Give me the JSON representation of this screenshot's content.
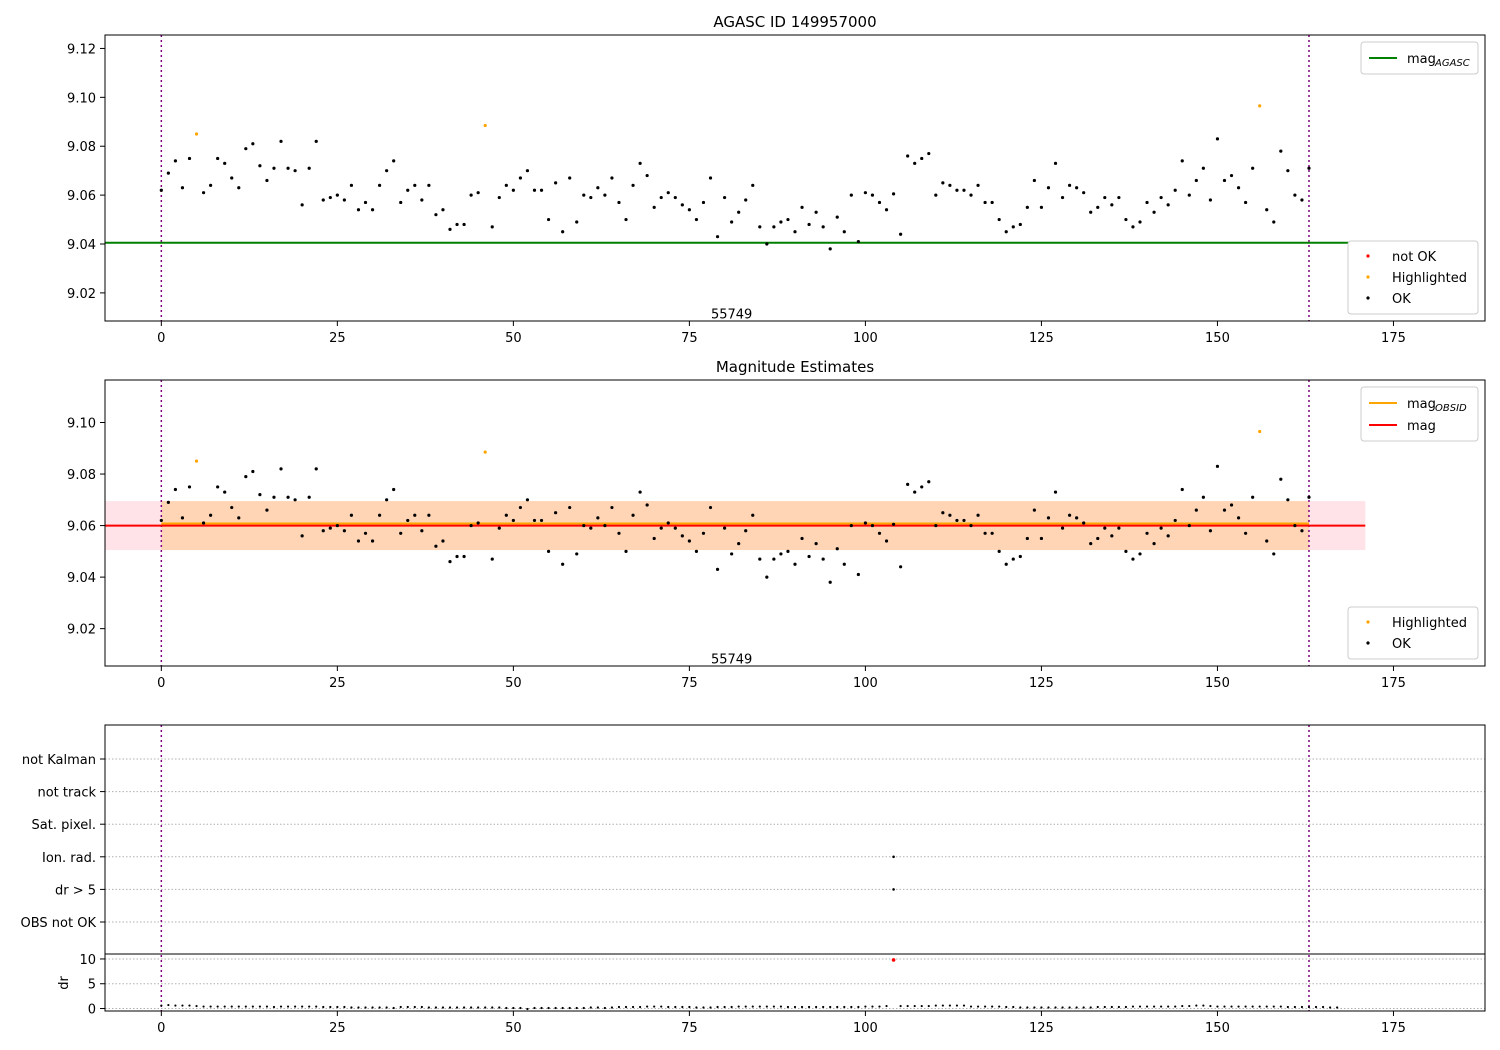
{
  "chart_data": [
    {
      "type": "scatter",
      "title": "AGASC ID 149957000",
      "xlim": [
        -8,
        188
      ],
      "ylim": [
        9.0085,
        9.1255
      ],
      "xticks": [
        0,
        25,
        50,
        75,
        100,
        125,
        150,
        175
      ],
      "yticks": [
        9.02,
        9.04,
        9.06,
        9.08,
        9.1,
        9.12
      ],
      "vlines": [
        0,
        163
      ],
      "annotation": {
        "text": "55749",
        "x": 81,
        "y": 9.0115
      },
      "hline": {
        "name": "mag",
        "subscript": "AGASC",
        "y": 9.0405,
        "x0": -8,
        "x1": 171,
        "color": "#008000"
      },
      "legend_lines": [
        {
          "name": "mag",
          "subscript": "AGASC",
          "color": "#008000"
        }
      ],
      "legend_points": [
        {
          "name": "not OK",
          "color": "#ff0000"
        },
        {
          "name": "Highlighted",
          "color": "#ffa500"
        },
        {
          "name": "OK",
          "color": "#000000"
        }
      ],
      "series": [
        {
          "name": "OK",
          "color": "#000000",
          "x": [
            0,
            1,
            2,
            3,
            4,
            6,
            7,
            8,
            9,
            10,
            11,
            12,
            13,
            14,
            15,
            16,
            17,
            18,
            19,
            20,
            21,
            22,
            23,
            24,
            25,
            26,
            27,
            28,
            29,
            30,
            31,
            32,
            33,
            34,
            35,
            36,
            37,
            38,
            39,
            40,
            41,
            42,
            43,
            44,
            45,
            47,
            48,
            49,
            50,
            51,
            52,
            53,
            54,
            55,
            56,
            57,
            58,
            59,
            60,
            61,
            62,
            63,
            64,
            65,
            66,
            67,
            68,
            69,
            70,
            71,
            72,
            73,
            74,
            75,
            76,
            77,
            78,
            79,
            80,
            81,
            82,
            83,
            84,
            85,
            86,
            87,
            88,
            89,
            90,
            91,
            92,
            93,
            94,
            95,
            96,
            97,
            98,
            99,
            100,
            101,
            102,
            103,
            104,
            105,
            106,
            107,
            108,
            109,
            110,
            111,
            112,
            113,
            114,
            115,
            116,
            117,
            118,
            119,
            120,
            121,
            122,
            123,
            124,
            125,
            126,
            127,
            128,
            129,
            130,
            131,
            132,
            133,
            134,
            135,
            136,
            137,
            138,
            139,
            140,
            141,
            142,
            143,
            144,
            145,
            146,
            147,
            148,
            149,
            150,
            151,
            152,
            153,
            154,
            155,
            157,
            158,
            159,
            160,
            161,
            162,
            163
          ],
          "y": [
            9.062,
            9.069,
            9.074,
            9.063,
            9.075,
            9.061,
            9.064,
            9.075,
            9.073,
            9.067,
            9.063,
            9.079,
            9.081,
            9.072,
            9.066,
            9.071,
            9.082,
            9.071,
            9.07,
            9.056,
            9.071,
            9.082,
            9.058,
            9.059,
            9.06,
            9.058,
            9.064,
            9.054,
            9.057,
            9.054,
            9.064,
            9.07,
            9.074,
            9.057,
            9.062,
            9.064,
            9.058,
            9.064,
            9.052,
            9.054,
            9.046,
            9.048,
            9.048,
            9.06,
            9.061,
            9.047,
            9.059,
            9.064,
            9.062,
            9.067,
            9.07,
            9.062,
            9.062,
            9.05,
            9.065,
            9.045,
            9.067,
            9.049,
            9.06,
            9.059,
            9.063,
            9.06,
            9.067,
            9.057,
            9.05,
            9.064,
            9.073,
            9.068,
            9.055,
            9.059,
            9.061,
            9.059,
            9.056,
            9.054,
            9.05,
            9.057,
            9.067,
            9.043,
            9.059,
            9.049,
            9.053,
            9.058,
            9.064,
            9.047,
            9.04,
            9.047,
            9.049,
            9.05,
            9.045,
            9.055,
            9.048,
            9.053,
            9.047,
            9.038,
            9.051,
            9.045,
            9.06,
            9.041,
            9.061,
            9.06,
            9.057,
            9.054,
            9.0605,
            9.044,
            9.076,
            9.073,
            9.075,
            9.077,
            9.06,
            9.065,
            9.064,
            9.062,
            9.062,
            9.06,
            9.064,
            9.057,
            9.057,
            9.05,
            9.045,
            9.047,
            9.048,
            9.055,
            9.066,
            9.055,
            9.063,
            9.073,
            9.059,
            9.064,
            9.063,
            9.061,
            9.053,
            9.055,
            9.059,
            9.056,
            9.059,
            9.05,
            9.047,
            9.049,
            9.057,
            9.053,
            9.059,
            9.056,
            9.062,
            9.074,
            9.06,
            9.066,
            9.071,
            9.058,
            9.083,
            9.066,
            9.068,
            9.063,
            9.057,
            9.071,
            9.054,
            9.049,
            9.078,
            9.07,
            9.06,
            9.058,
            9.071
          ]
        },
        {
          "name": "Highlighted",
          "color": "#ffa500",
          "x": [
            5,
            46,
            156
          ],
          "y": [
            9.085,
            9.0885,
            9.0965
          ]
        }
      ]
    },
    {
      "type": "scatter",
      "title": "Magnitude Estimates",
      "xlim": [
        -8,
        188
      ],
      "ylim": [
        9.0055,
        9.1165
      ],
      "xticks": [
        0,
        25,
        50,
        75,
        100,
        125,
        150,
        175
      ],
      "yticks": [
        9.02,
        9.04,
        9.06,
        9.08,
        9.1
      ],
      "vlines": [
        0,
        163
      ],
      "annotation": {
        "text": "55749",
        "x": 81,
        "y": 9.0085
      },
      "bands": [
        {
          "y0": 9.0505,
          "y1": 9.0695,
          "x0": -8,
          "x1": 171,
          "color": "#ffc0cb",
          "opacity": 0.45
        },
        {
          "y0": 9.0505,
          "y1": 9.0695,
          "x0": 0,
          "x1": 163,
          "color": "#ffa500",
          "opacity": 0.22
        }
      ],
      "lines": [
        {
          "name": "mag",
          "subscript": "OBSID",
          "y": 9.0608,
          "x0": 0,
          "x1": 163,
          "color": "#ffa500"
        },
        {
          "name": "mag",
          "subscript": "",
          "y": 9.06,
          "x0": -8,
          "x1": 171,
          "color": "#ff0000"
        }
      ],
      "legend_lines": [
        {
          "name": "mag",
          "subscript": "OBSID",
          "color": "#ffa500"
        },
        {
          "name": "mag",
          "subscript": "",
          "color": "#ff0000"
        }
      ],
      "legend_points": [
        {
          "name": "Highlighted",
          "color": "#ffa500"
        },
        {
          "name": "OK",
          "color": "#000000"
        }
      ],
      "series_ref": 0
    },
    {
      "type": "scatter",
      "ylabel": "dr",
      "xlim": [
        -8,
        188
      ],
      "flag_labels": [
        "OBS not OK",
        "dr > 5",
        "Ion. rad.",
        "Sat. pixel.",
        "not track",
        "not Kalman"
      ],
      "flag_points": [
        {
          "flag": "Ion. rad.",
          "x": 104
        },
        {
          "flag": "dr > 5",
          "x": 104
        }
      ],
      "dr_ylim": [
        -0.5,
        11
      ],
      "dr_yticks": [
        0,
        5,
        10
      ],
      "dr_values": [
        0.6,
        0.7,
        0.6,
        0.6,
        0.6,
        0.5,
        0.4,
        0.4,
        0.4,
        0.4,
        0.4,
        0.4,
        0.4,
        0.4,
        0.4,
        0.4,
        0.3,
        0.4,
        0.4,
        0.4,
        0.4,
        0.4,
        0.4,
        0.3,
        0.3,
        0.3,
        0.3,
        0.2,
        0.2,
        0.2,
        0.2,
        0.2,
        0.2,
        0.1,
        0.3,
        0.3,
        0.3,
        0.3,
        0.2,
        0.2,
        0.2,
        0.2,
        0.2,
        0.2,
        0.2,
        0.2,
        0.2,
        0.2,
        0.2,
        0.1,
        0.1,
        0.1,
        -0.1,
        0.1,
        0.1,
        0.1,
        0.1,
        0.1,
        0.1,
        0.1,
        0.1,
        0.2,
        0.2,
        0.1,
        0.2,
        0.3,
        0.3,
        0.3,
        0.3,
        0.4,
        0.4,
        0.4,
        0.3,
        0.3,
        0.3,
        0.3,
        0.2,
        0.2,
        0.2,
        0.3,
        0.3,
        0.3,
        0.4,
        0.4,
        0.4,
        0.4,
        0.4,
        0.4,
        0.4,
        0.3,
        0.3,
        0.3,
        0.3,
        0.3,
        0.3,
        0.3,
        0.3,
        0.3,
        0.3,
        0.3,
        0.4,
        0.4,
        0.4,
        0.5,
        9.8,
        0.5,
        0.5,
        0.5,
        0.5,
        0.5,
        0.6,
        0.6,
        0.6,
        0.6,
        0.6,
        0.4,
        0.4,
        0.4,
        0.4,
        0.4,
        0.3,
        0.3,
        0.2,
        0.2,
        0.2,
        0.2,
        0.2,
        0.2,
        0.2,
        0.2,
        0.2,
        0.2,
        0.2,
        0.3,
        0.3,
        0.3,
        0.3,
        0.3,
        0.4,
        0.4,
        0.4,
        0.4,
        0.4,
        0.4,
        0.4,
        0.5,
        0.5,
        0.6,
        0.6,
        0.5,
        0.4,
        0.4,
        0.4,
        0.4,
        0.4,
        0.4,
        0.4,
        0.4,
        0.4,
        0.4,
        0.3,
        0.3,
        0.3,
        0.3,
        0.3,
        0.3,
        0.2,
        0.2
      ],
      "dr_red_index": 104,
      "xticks": [
        0,
        25,
        50,
        75,
        100,
        125,
        150,
        175
      ],
      "vlines": [
        0,
        163
      ]
    }
  ]
}
